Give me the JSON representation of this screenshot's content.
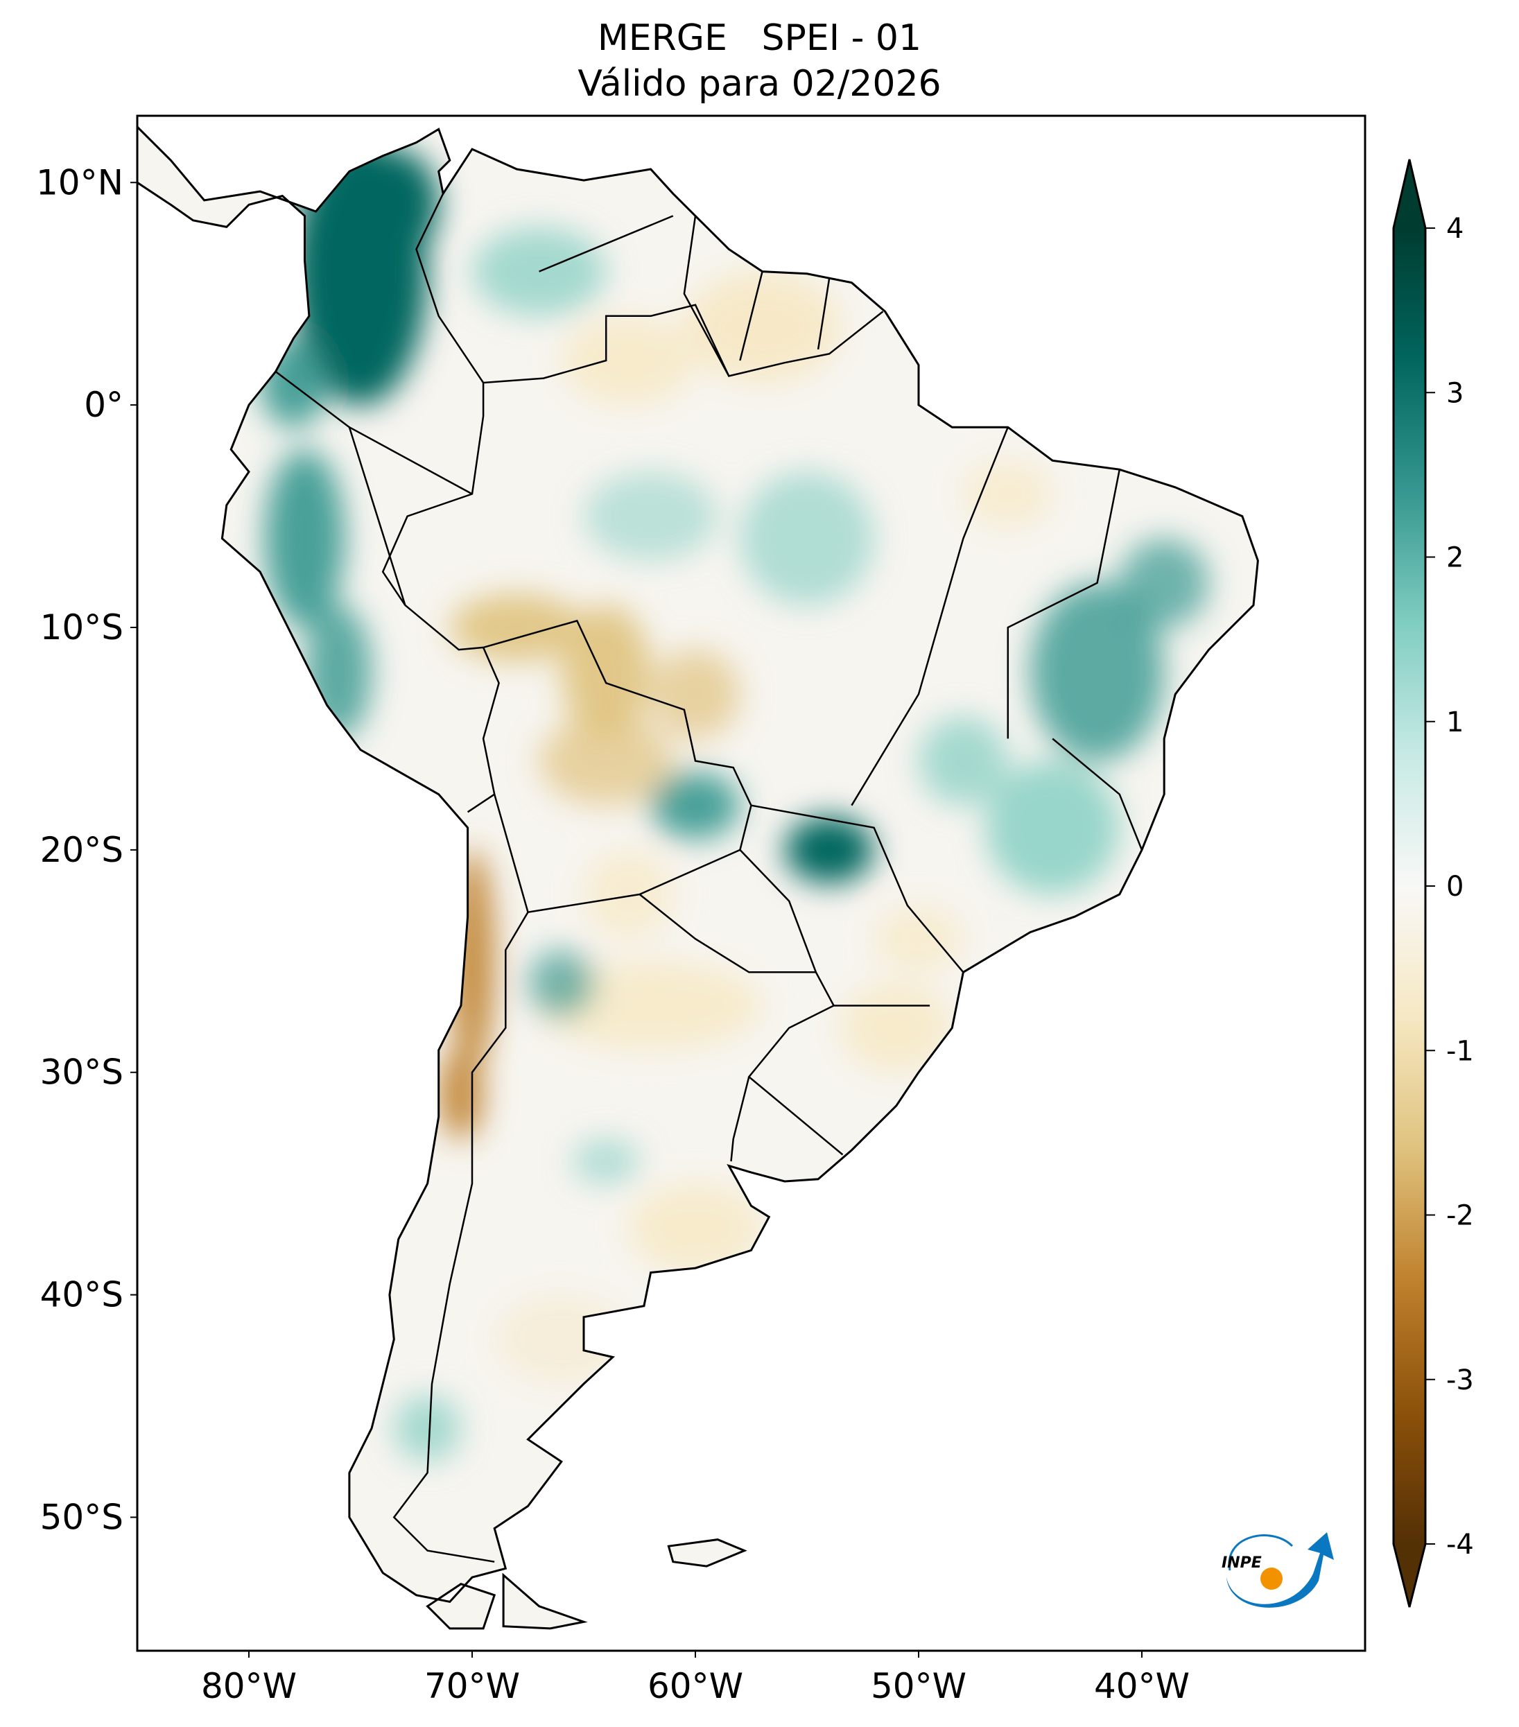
{
  "title": {
    "line1": "MERGE   SPEI - 01",
    "line2": "Válido para 02/2026"
  },
  "map": {
    "projection": "PlateCarree",
    "extent_lon": [
      -85,
      -30
    ],
    "extent_lat": [
      -56,
      13
    ],
    "lat_ticks": [
      {
        "value": 10,
        "label": "10°N"
      },
      {
        "value": 0,
        "label": "0°"
      },
      {
        "value": -10,
        "label": "10°S"
      },
      {
        "value": -20,
        "label": "20°S"
      },
      {
        "value": -30,
        "label": "30°S"
      },
      {
        "value": -40,
        "label": "40°S"
      },
      {
        "value": -50,
        "label": "50°S"
      }
    ],
    "lon_ticks": [
      {
        "value": -80,
        "label": "80°W"
      },
      {
        "value": -70,
        "label": "70°W"
      },
      {
        "value": -60,
        "label": "60°W"
      },
      {
        "value": -50,
        "label": "50°W"
      },
      {
        "value": -40,
        "label": "40°W"
      }
    ]
  },
  "colorbar": {
    "range": [
      -4,
      4
    ],
    "extend": "both",
    "colormap": "BrBG",
    "ticks": [
      {
        "value": 4,
        "label": "4"
      },
      {
        "value": 3,
        "label": "3"
      },
      {
        "value": 2,
        "label": "2"
      },
      {
        "value": 1,
        "label": "1"
      },
      {
        "value": 0,
        "label": "0"
      },
      {
        "value": -1,
        "label": "-1"
      },
      {
        "value": -2,
        "label": "-2"
      },
      {
        "value": -3,
        "label": "-3"
      },
      {
        "value": -4,
        "label": "-4"
      }
    ],
    "colors": [
      "#543005",
      "#8c510a",
      "#bf812d",
      "#dfc27d",
      "#f6e8c3",
      "#f8f8f6",
      "#c7eae5",
      "#80cdc1",
      "#35978f",
      "#01665e",
      "#003c30"
    ]
  },
  "logo": {
    "text": "INPE",
    "blue": "#0a78c0",
    "orange": "#f39200"
  }
}
